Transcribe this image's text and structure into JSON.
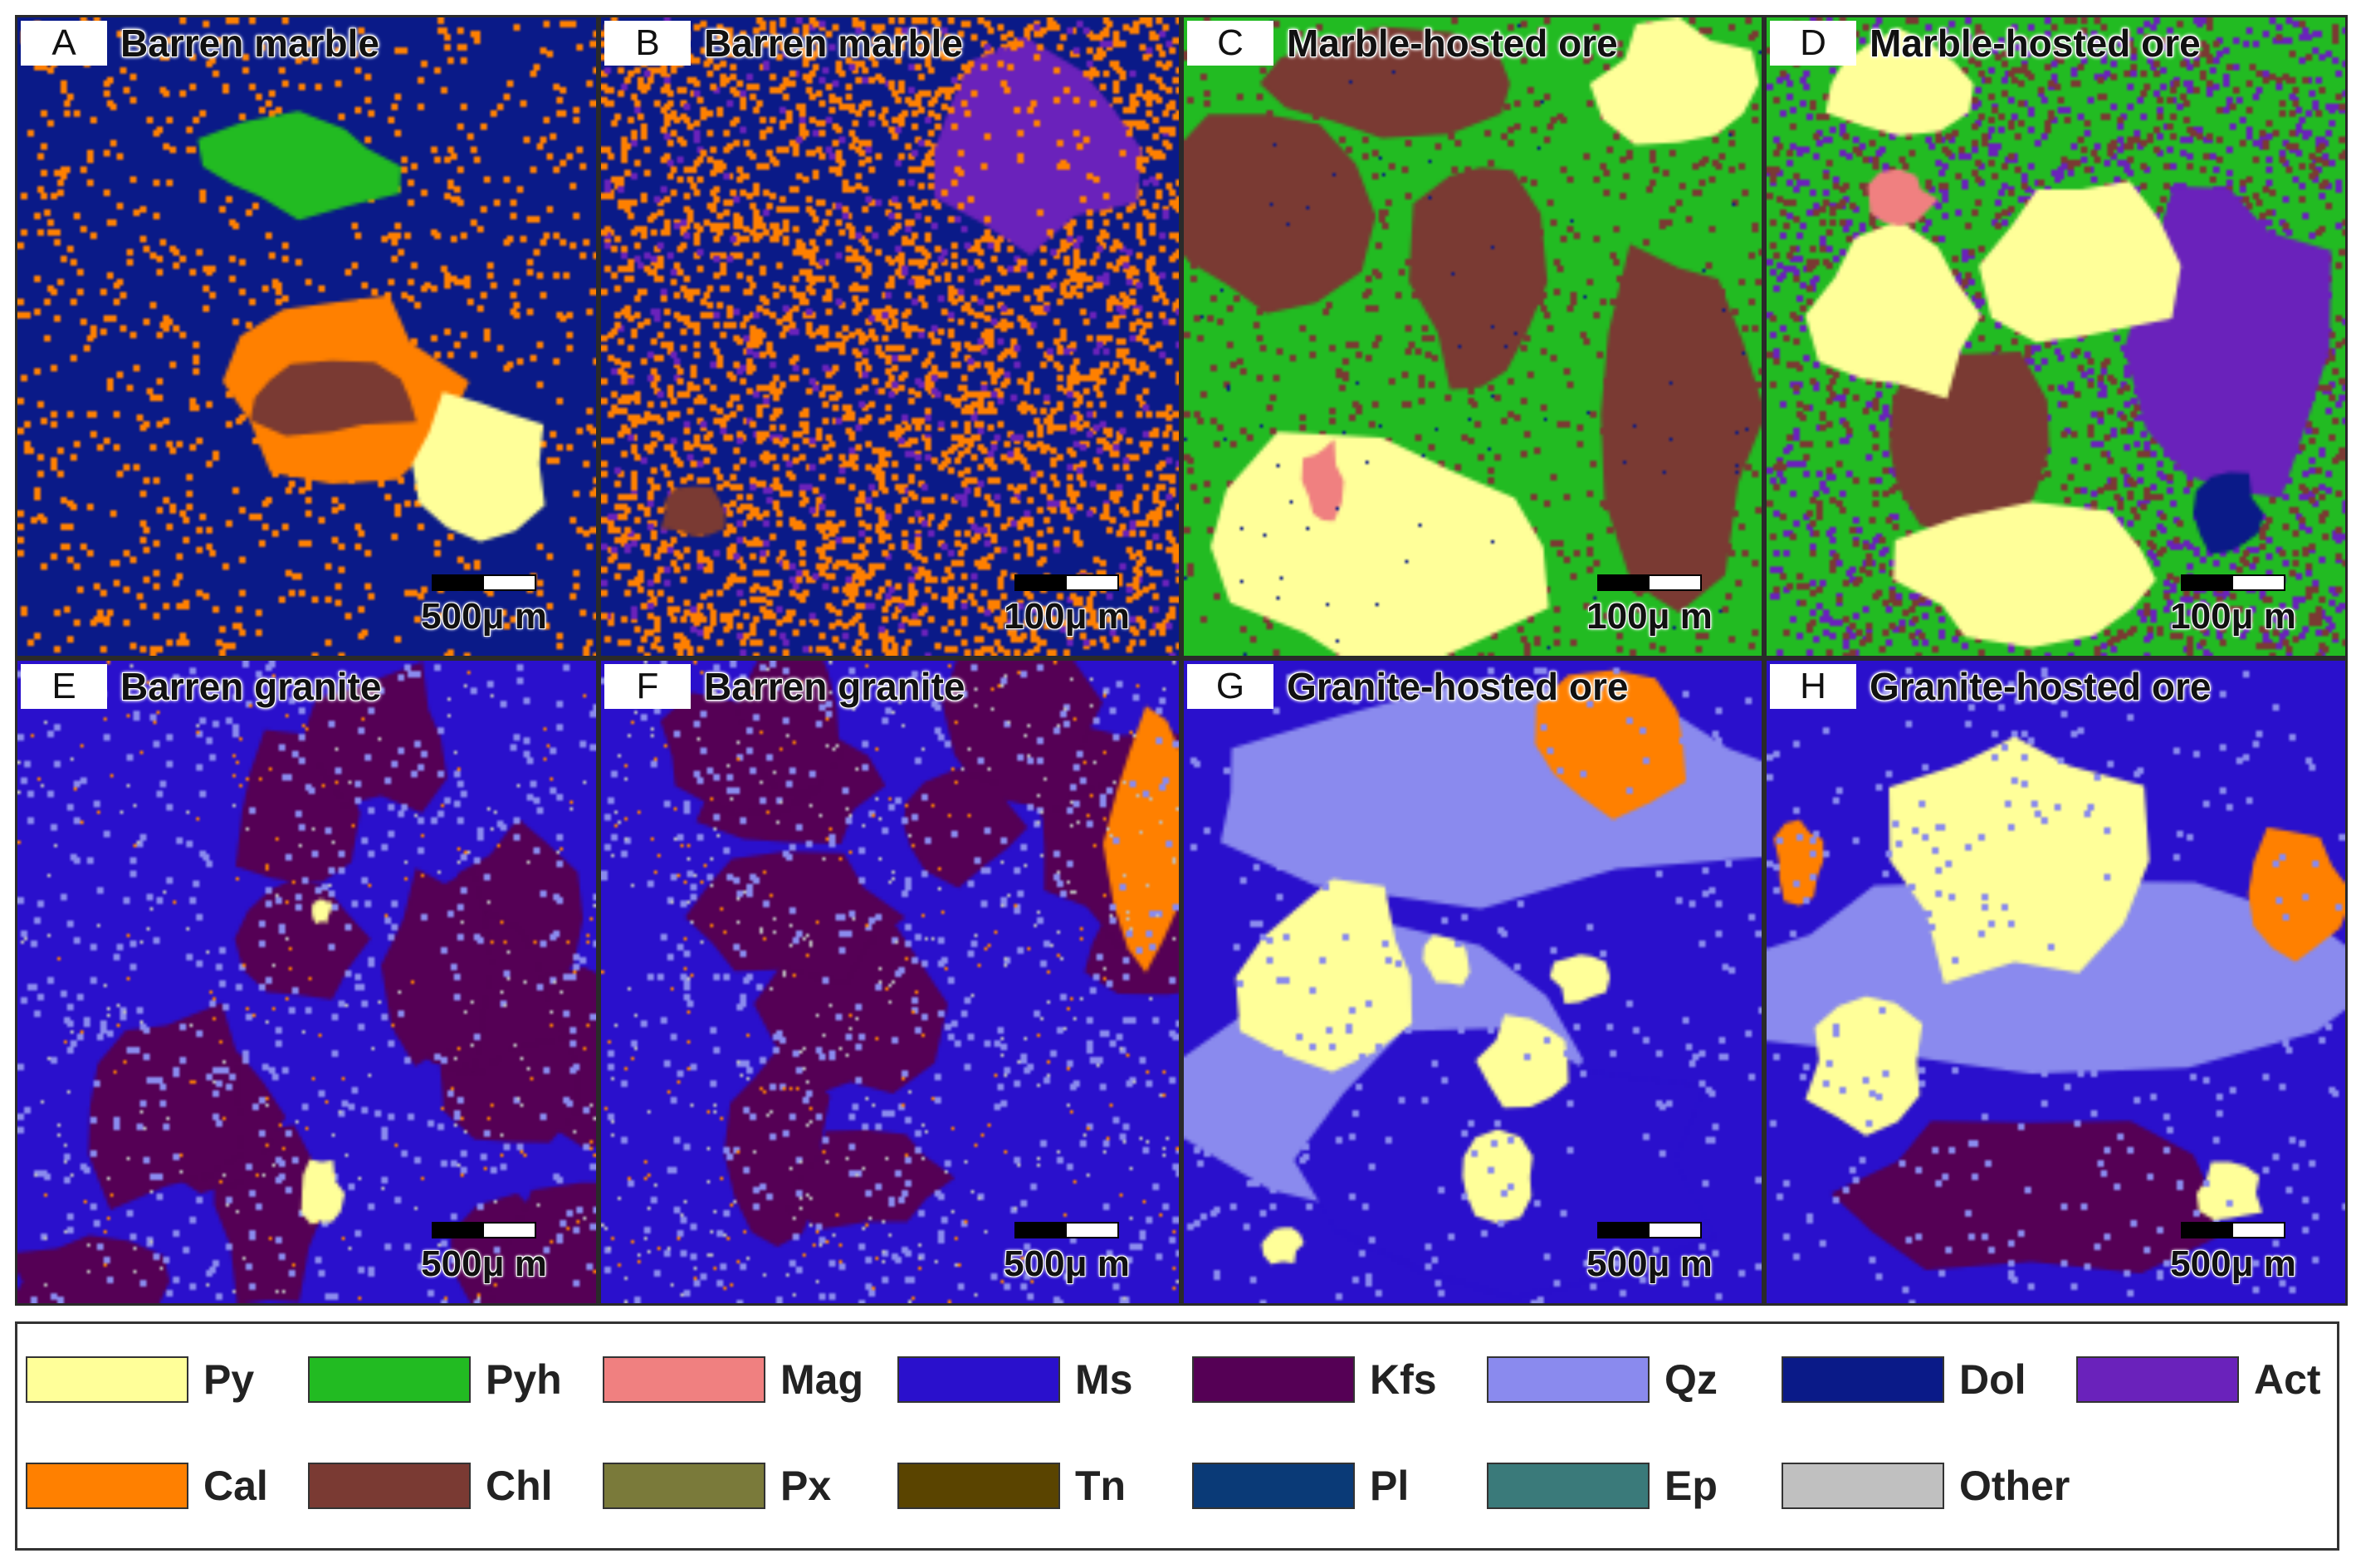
{
  "panels": [
    {
      "letter": "A",
      "title": "Barren marble",
      "scale": "500μ m"
    },
    {
      "letter": "B",
      "title": "Barren marble",
      "scale": "100μ m"
    },
    {
      "letter": "C",
      "title": "Marble-hosted ore",
      "scale": "100μ m"
    },
    {
      "letter": "D",
      "title": "Marble-hosted ore",
      "scale": "100μ m"
    },
    {
      "letter": "E",
      "title": "Barren granite",
      "scale": "500μ m"
    },
    {
      "letter": "F",
      "title": "Barren granite",
      "scale": "500μ m"
    },
    {
      "letter": "G",
      "title": "Granite-hosted ore",
      "scale": "500μ m"
    },
    {
      "letter": "H",
      "title": "Granite-hosted ore",
      "scale": "500μ m"
    }
  ],
  "legend": [
    {
      "label": "Py",
      "color": "#ffff99"
    },
    {
      "label": "Pyh",
      "color": "#22bb22"
    },
    {
      "label": "Mag",
      "color": "#f08080"
    },
    {
      "label": "Ms",
      "color": "#2a10cc"
    },
    {
      "label": "Kfs",
      "color": "#550055"
    },
    {
      "label": "Qz",
      "color": "#8a8aee"
    },
    {
      "label": "Dol",
      "color": "#0a1a88"
    },
    {
      "label": "Act",
      "color": "#6a22bb"
    },
    {
      "label": "Cal",
      "color": "#ff8000"
    },
    {
      "label": "Chl",
      "color": "#7a3a33"
    },
    {
      "label": "Px",
      "color": "#7a7a3a"
    },
    {
      "label": "Tn",
      "color": "#5a4400"
    },
    {
      "label": "Pl",
      "color": "#0a3a77"
    },
    {
      "label": "Ep",
      "color": "#3a7a7a"
    },
    {
      "label": "Other",
      "color": "#c0c0c0"
    }
  ]
}
